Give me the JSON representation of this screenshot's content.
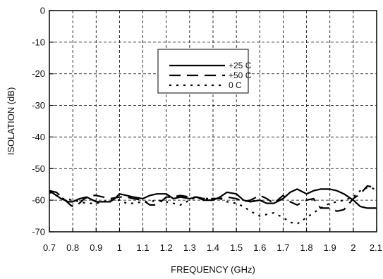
{
  "chart_data": {
    "type": "line",
    "xlabel": "FREQUENCY (GHz)",
    "ylabel": "ISOLATION (dB)",
    "xlim": [
      0.7,
      2.1
    ],
    "ylim": [
      -70,
      0
    ],
    "x_ticks": [
      0.7,
      0.8,
      0.9,
      1.0,
      1.1,
      1.2,
      1.3,
      1.4,
      1.5,
      1.6,
      1.7,
      1.8,
      1.9,
      2.0,
      2.1
    ],
    "x_tick_labels": [
      "0.7",
      "0.8",
      "0.9",
      "1",
      "1.1",
      "1.2",
      "1.3",
      "1.4",
      "1.5",
      "1.6",
      "1.7",
      "1.8",
      "1.9",
      "2",
      "2.1"
    ],
    "y_ticks": [
      0,
      -10,
      -20,
      -30,
      -40,
      -50,
      -60,
      -70
    ],
    "y_tick_labels": [
      "0",
      "-10",
      "-20",
      "-30",
      "-40",
      "-50",
      "-60",
      "-70"
    ],
    "grid": true,
    "legend_position": "upper-center-right",
    "series": [
      {
        "name": "+25 C",
        "style": "solid",
        "x": [
          0.7,
          0.72,
          0.75,
          0.78,
          0.8,
          0.83,
          0.86,
          0.9,
          0.93,
          0.96,
          0.98,
          1.0,
          1.03,
          1.06,
          1.1,
          1.13,
          1.16,
          1.2,
          1.23,
          1.26,
          1.3,
          1.33,
          1.36,
          1.4,
          1.43,
          1.46,
          1.5,
          1.53,
          1.56,
          1.6,
          1.63,
          1.66,
          1.7,
          1.73,
          1.76,
          1.8,
          1.83,
          1.86,
          1.9,
          1.93,
          1.96,
          2.0,
          2.03,
          2.06,
          2.1
        ],
        "y": [
          -57,
          -58,
          -59.5,
          -60.5,
          -60.5,
          -59.5,
          -59,
          -60.5,
          -60.5,
          -60.5,
          -59.5,
          -58,
          -58.5,
          -59,
          -59.5,
          -58.5,
          -58,
          -58,
          -59.5,
          -59,
          -59.5,
          -59,
          -60,
          -60,
          -59,
          -57.5,
          -58,
          -60,
          -60.5,
          -60,
          -61,
          -61,
          -59.5,
          -57.5,
          -56.5,
          -58,
          -57,
          -56.5,
          -56.5,
          -57,
          -58,
          -60,
          -62,
          -62.5,
          -62.5
        ]
      },
      {
        "name": "+50 C",
        "style": "long-dash",
        "x": [
          0.7,
          0.73,
          0.76,
          0.79,
          0.8,
          0.82,
          0.85,
          0.88,
          0.9,
          0.93,
          0.96,
          1.0,
          1.03,
          1.06,
          1.1,
          1.13,
          1.16,
          1.2,
          1.23,
          1.26,
          1.3,
          1.33,
          1.36,
          1.4,
          1.43,
          1.46,
          1.5,
          1.53,
          1.56,
          1.6,
          1.63,
          1.66,
          1.7,
          1.73,
          1.76,
          1.8,
          1.83,
          1.86,
          1.9,
          1.93,
          1.96,
          2.0,
          2.03,
          2.06,
          2.1
        ],
        "y": [
          -57,
          -57.5,
          -59.5,
          -61.5,
          -62,
          -61.5,
          -59.5,
          -58.5,
          -58.5,
          -59,
          -59.5,
          -59,
          -59,
          -59.5,
          -60,
          -61.5,
          -61.5,
          -59,
          -59,
          -58.5,
          -59,
          -59,
          -59.5,
          -59.5,
          -59.5,
          -59,
          -59.5,
          -60.5,
          -60,
          -58.5,
          -59.5,
          -61,
          -58.5,
          -60.5,
          -61.5,
          -60,
          -59.5,
          -62.5,
          -62.5,
          -63.5,
          -63,
          -59.5,
          -58,
          -55.5,
          -56
        ]
      },
      {
        "name": "0 C",
        "style": "dotted",
        "x": [
          0.7,
          0.73,
          0.76,
          0.8,
          0.83,
          0.86,
          0.9,
          0.93,
          0.96,
          1.0,
          1.03,
          1.06,
          1.1,
          1.13,
          1.16,
          1.2,
          1.23,
          1.26,
          1.3,
          1.33,
          1.36,
          1.4,
          1.43,
          1.46,
          1.5,
          1.53,
          1.56,
          1.6,
          1.63,
          1.66,
          1.7,
          1.73,
          1.76,
          1.8,
          1.83,
          1.86,
          1.9,
          1.93,
          1.96,
          2.0,
          2.03,
          2.06,
          2.1
        ],
        "y": [
          -57.5,
          -58.5,
          -59.5,
          -60,
          -60.5,
          -61,
          -61,
          -60.5,
          -60,
          -60,
          -61,
          -61,
          -60.5,
          -60.5,
          -60,
          -60.5,
          -61,
          -61.5,
          -60,
          -59,
          -59.5,
          -59.5,
          -59.5,
          -60.5,
          -61,
          -62,
          -63.5,
          -65,
          -64.5,
          -64,
          -65.5,
          -67,
          -67.5,
          -65.5,
          -64,
          -62.5,
          -61,
          -60.5,
          -60,
          -59,
          -57,
          -56,
          -56.5
        ]
      }
    ]
  }
}
